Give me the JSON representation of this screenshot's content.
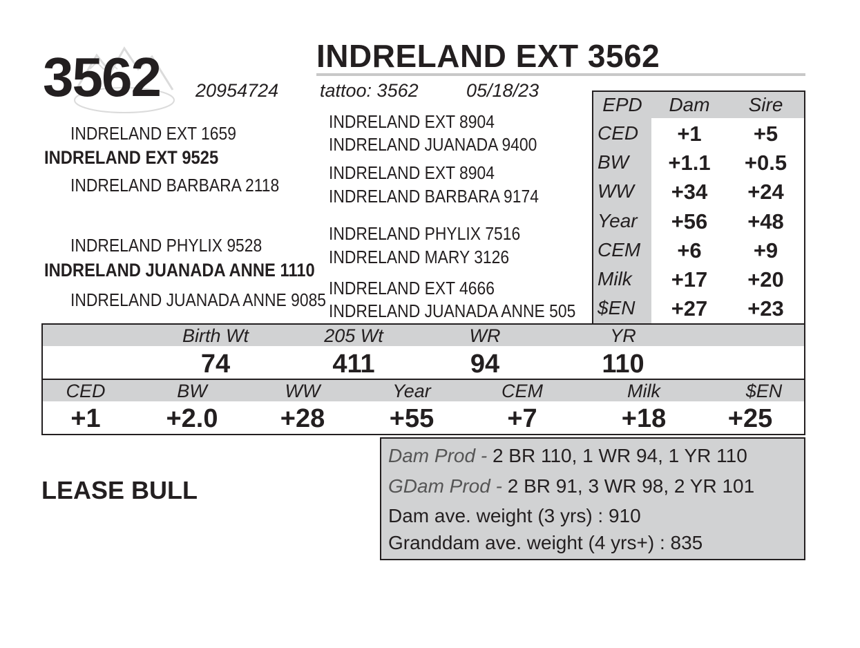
{
  "header": {
    "lot_number": "3562",
    "name": "INDRELAND EXT 3562",
    "registration": "20954724",
    "tattoo": "tattoo: 3562",
    "birth_date": "05/18/23"
  },
  "pedigree": {
    "sire_sire": "INDRELAND EXT 1659",
    "sire": "INDRELAND EXT 9525",
    "sire_dam": "INDRELAND BARBARA 2118",
    "dam_sire": "INDRELAND PHYLIX 9528",
    "dam": "INDRELAND JUANADA ANNE 1110",
    "dam_dam": "INDRELAND JUANADA ANNE 9085",
    "ggp": [
      "INDRELAND EXT 8904",
      "INDRELAND JUANADA 9400",
      "INDRELAND EXT 8904",
      "INDRELAND BARBARA 9174",
      "INDRELAND PHYLIX 7516",
      "INDRELAND MARY 3126",
      "INDRELAND EXT 4666",
      "INDRELAND JUANADA ANNE 505"
    ]
  },
  "epd_table": {
    "headers": [
      "EPD",
      "Dam",
      "Sire"
    ],
    "rows": [
      {
        "label": "CED",
        "dam": "+1",
        "sire": "+5"
      },
      {
        "label": "BW",
        "dam": "+1.1",
        "sire": "+0.5"
      },
      {
        "label": "WW",
        "dam": "+34",
        "sire": "+24"
      },
      {
        "label": "Year",
        "dam": "+56",
        "sire": "+48"
      },
      {
        "label": "CEM",
        "dam": "+6",
        "sire": "+9"
      },
      {
        "label": "Milk",
        "dam": "+17",
        "sire": "+20"
      },
      {
        "label": "$EN",
        "dam": "+27",
        "sire": "+23"
      }
    ]
  },
  "weights": {
    "headers": [
      "Birth Wt",
      "205 Wt",
      "WR",
      "YR"
    ],
    "values": [
      "74",
      "411",
      "94",
      "110"
    ]
  },
  "calf_epds": {
    "headers": [
      "CED",
      "BW",
      "WW",
      "Year",
      "CEM",
      "Milk",
      "$EN"
    ],
    "values": [
      "+1",
      "+2.0",
      "+28",
      "+55",
      "+7",
      "+18",
      "+25"
    ]
  },
  "lease_label": "LEASE BULL",
  "production": {
    "dam_prod_label": "Dam Prod -",
    "dam_prod_value": "2 BR 110, 1 WR 94, 1 YR 110",
    "gdam_prod_label": "GDam Prod -",
    "gdam_prod_value": "2 BR 91, 3 WR 98, 2 YR 101",
    "dam_weight": "Dam ave. weight (3 yrs) : 910",
    "granddam_weight": "Granddam ave. weight (4 yrs+) : 835"
  },
  "colors": {
    "band": "#d1d2d3",
    "ink": "#231f20"
  },
  "icons": {
    "watermark": "mountain-logo-icon"
  }
}
